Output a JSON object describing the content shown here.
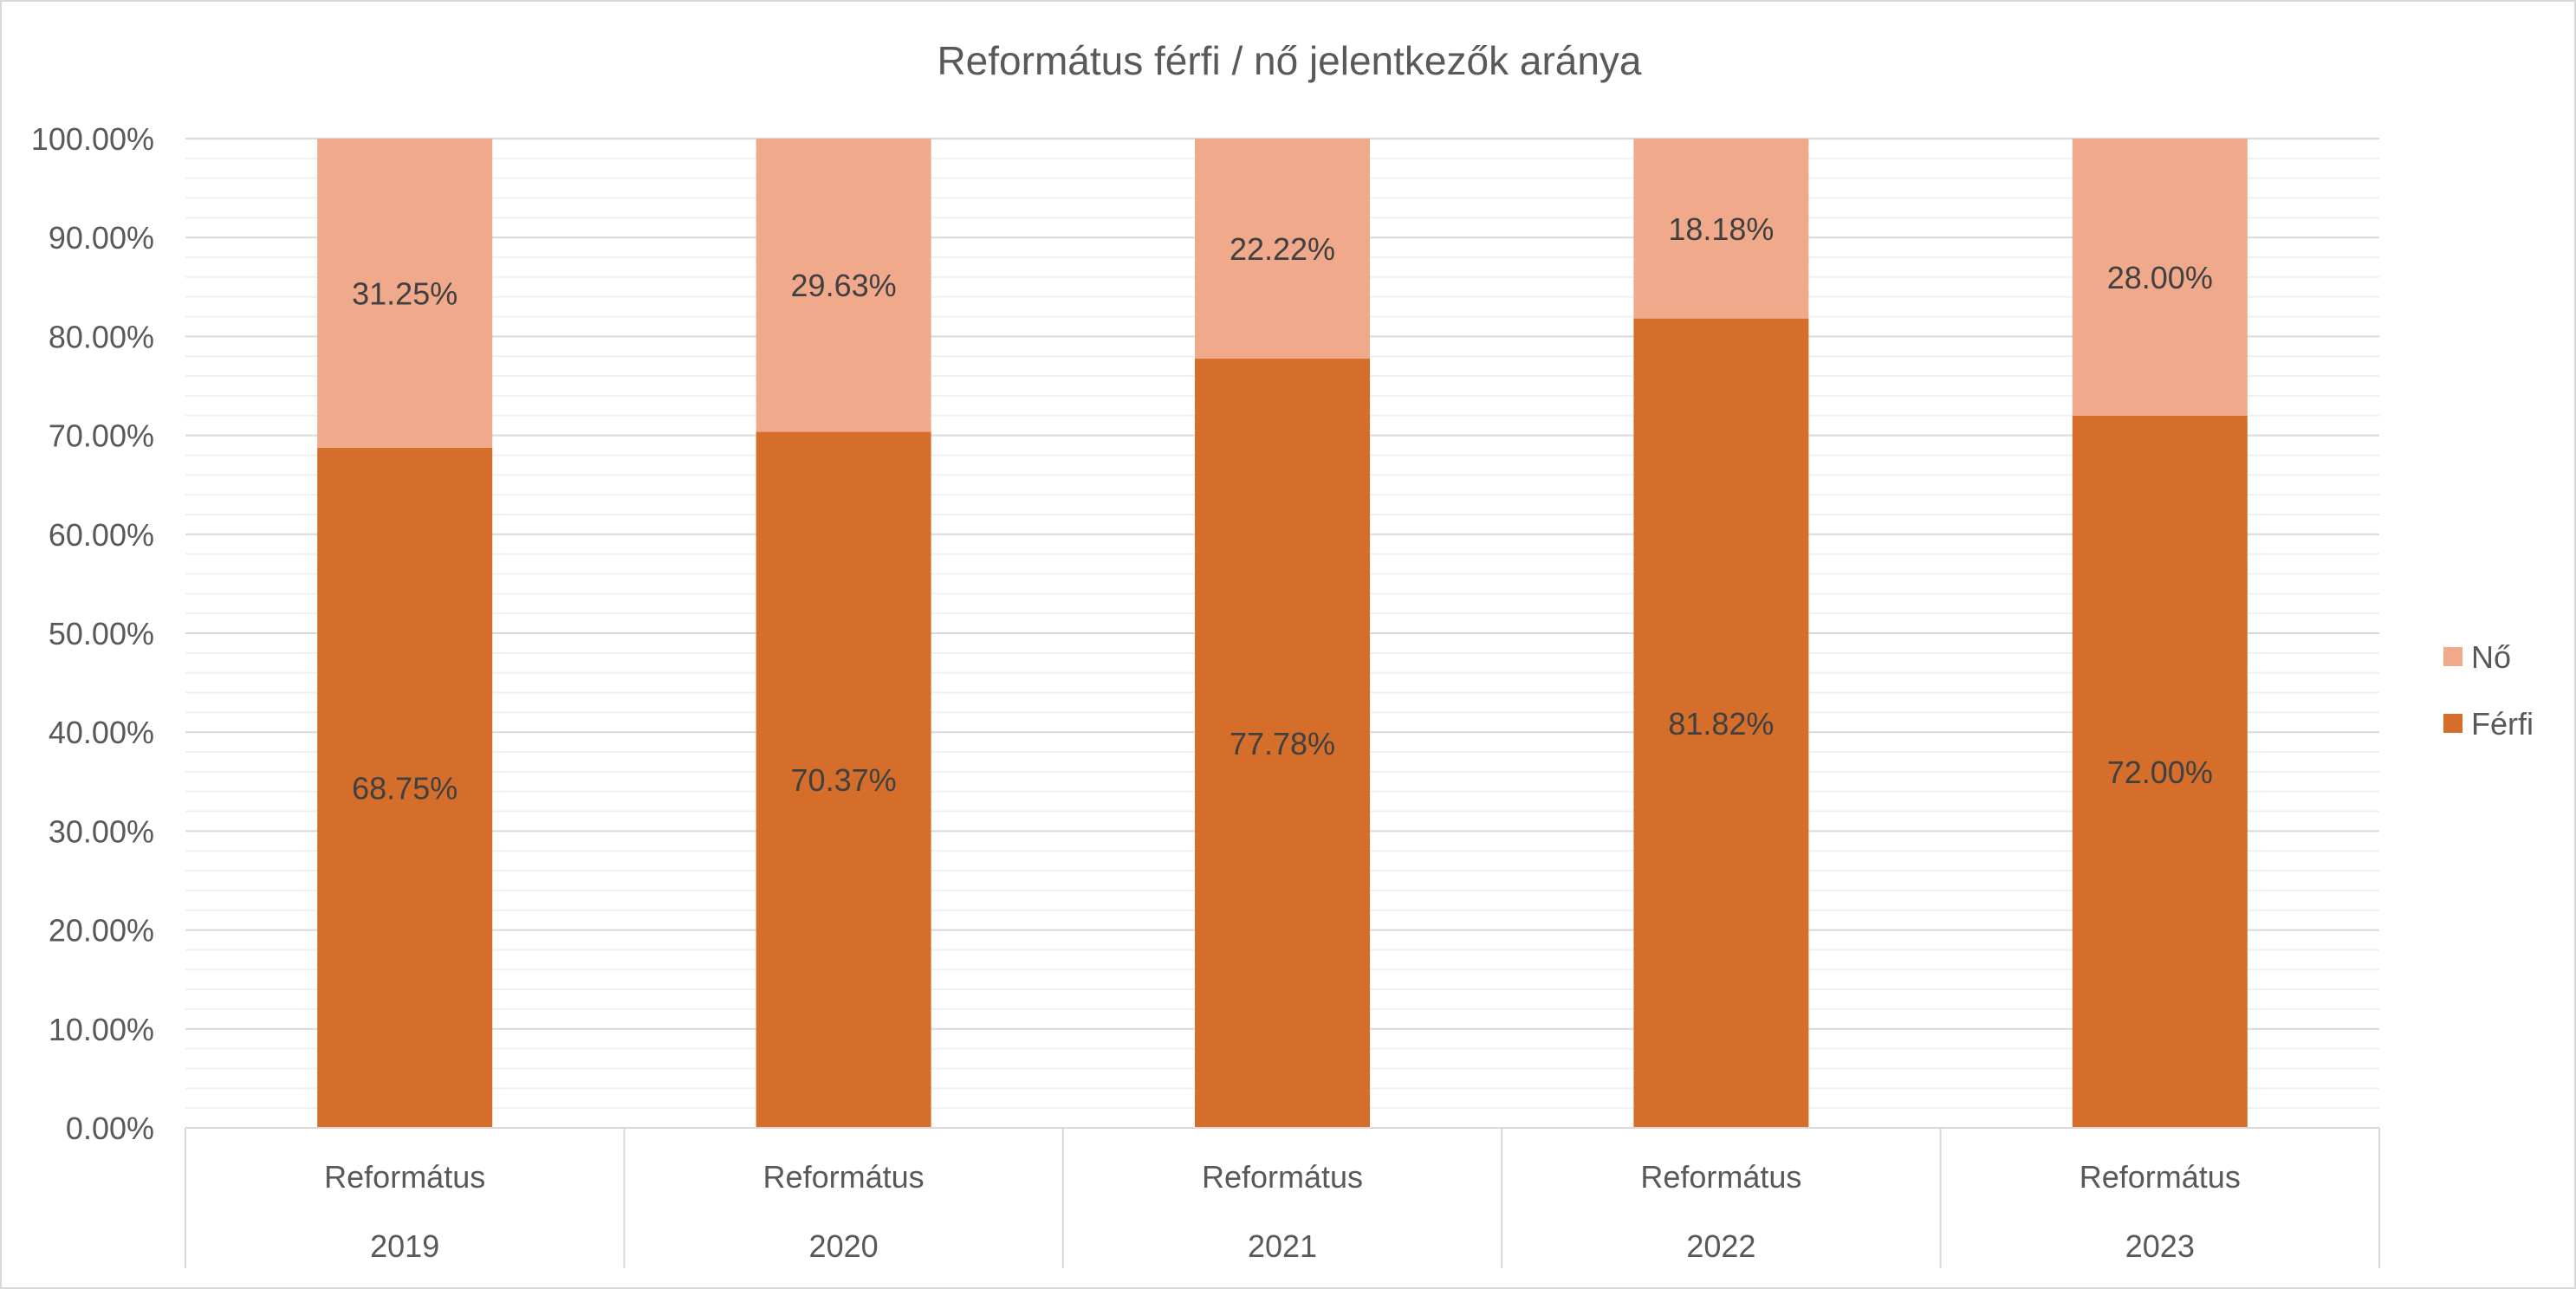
{
  "chart_data": {
    "type": "bar",
    "stacked": true,
    "title": "Református férfi / nő jelentkezők aránya",
    "categories": [
      {
        "group": "Református",
        "year": "2019"
      },
      {
        "group": "Református",
        "year": "2020"
      },
      {
        "group": "Református",
        "year": "2021"
      },
      {
        "group": "Református",
        "year": "2022"
      },
      {
        "group": "Református",
        "year": "2023"
      }
    ],
    "series": [
      {
        "name": "Férfi",
        "color": "#d46e2a",
        "values": [
          68.75,
          70.37,
          77.78,
          81.82,
          72.0
        ],
        "labels": [
          "68.75%",
          "70.37%",
          "77.78%",
          "81.82%",
          "72.00%"
        ]
      },
      {
        "name": "Nő",
        "color": "#f1a98b",
        "values": [
          31.25,
          29.63,
          22.22,
          18.18,
          28.0
        ],
        "labels": [
          "31.25%",
          "29.63%",
          "22.22%",
          "18.18%",
          "28.00%"
        ]
      }
    ],
    "ylim": [
      0,
      100
    ],
    "yticks": [
      0,
      10,
      20,
      30,
      40,
      50,
      60,
      70,
      80,
      90,
      100
    ],
    "ytick_labels": [
      "0.00%",
      "10.00%",
      "20.00%",
      "30.00%",
      "40.00%",
      "50.00%",
      "60.00%",
      "70.00%",
      "80.00%",
      "90.00%",
      "100.00%"
    ],
    "grid": true,
    "minor_grid": true,
    "legend_position": "right",
    "legend_order": [
      "Nő",
      "Férfi"
    ]
  }
}
